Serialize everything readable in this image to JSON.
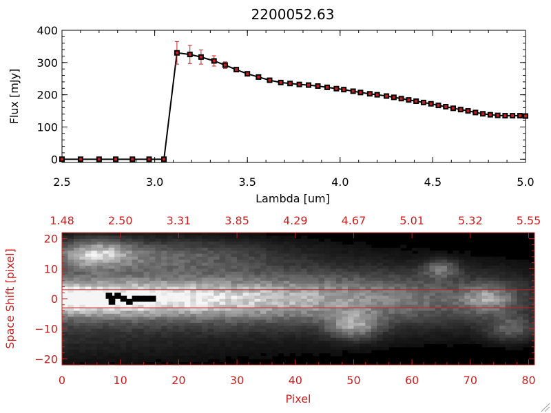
{
  "chart_data": [
    {
      "type": "line",
      "title": "2200052.63",
      "xlabel": "Lambda [um]",
      "ylabel": "Flux [mJy]",
      "xlim": [
        2.5,
        5.0
      ],
      "ylim": [
        -10,
        400
      ],
      "x_ticks": [
        "2.5",
        "3.0",
        "3.5",
        "4.0",
        "4.5",
        "5.0"
      ],
      "y_ticks": [
        "0",
        "100",
        "200",
        "300",
        "400"
      ],
      "grid": false,
      "series": [
        {
          "x": [
            2.5,
            2.6,
            2.7,
            2.79,
            2.88,
            2.97,
            3.05,
            3.12,
            3.19,
            3.25,
            3.32,
            3.38,
            3.44,
            3.5,
            3.56,
            3.62,
            3.68,
            3.73,
            3.78,
            3.83,
            3.88,
            3.93,
            3.98,
            4.02,
            4.07,
            4.11,
            4.16,
            4.2,
            4.25,
            4.29,
            4.33,
            4.37,
            4.41,
            4.45,
            4.49,
            4.53,
            4.57,
            4.61,
            4.65,
            4.69,
            4.73,
            4.77,
            4.81,
            4.85,
            4.89,
            4.93,
            4.97,
            5.0
          ],
          "y": [
            0,
            0,
            0,
            0,
            0,
            0,
            0,
            330,
            325,
            317,
            305,
            292,
            278,
            265,
            255,
            245,
            238,
            235,
            232,
            230,
            227,
            223,
            219,
            216,
            211,
            207,
            203,
            200,
            196,
            192,
            188,
            184,
            180,
            176,
            172,
            167,
            163,
            158,
            154,
            150,
            145,
            141,
            138,
            136,
            135,
            135,
            135,
            134
          ],
          "yerr": [
            0,
            0,
            0,
            0,
            0,
            0,
            0,
            35,
            28,
            22,
            16,
            10,
            6,
            4,
            3,
            3,
            2,
            2,
            2,
            2,
            2,
            2,
            2,
            2,
            2,
            2,
            2,
            2,
            2,
            2,
            2,
            2,
            2,
            2,
            2,
            2,
            2,
            2,
            2,
            2,
            2,
            2,
            2,
            2,
            2,
            2,
            2,
            2
          ],
          "color": "#000000",
          "marker_color": "#c81e1e"
        }
      ]
    },
    {
      "type": "heatmap",
      "xlabel": "Pixel",
      "ylabel": "Space Shift [pixel]",
      "xlim": [
        0,
        81
      ],
      "ylim": [
        -22,
        22
      ],
      "x_ticks": [
        "0",
        "10",
        "20",
        "30",
        "40",
        "50",
        "60",
        "70",
        "80"
      ],
      "y_ticks": [
        "20",
        "10",
        "0",
        "−10",
        "−20"
      ],
      "top_axis_ticks": [
        "1.48",
        "2.50",
        "3.31",
        "3.85",
        "4.29",
        "4.67",
        "5.01",
        "5.32",
        "5.55"
      ],
      "extraction_window": [
        -3,
        3
      ],
      "colormap": "grayscale",
      "axis_color": "#c81e1e"
    }
  ]
}
